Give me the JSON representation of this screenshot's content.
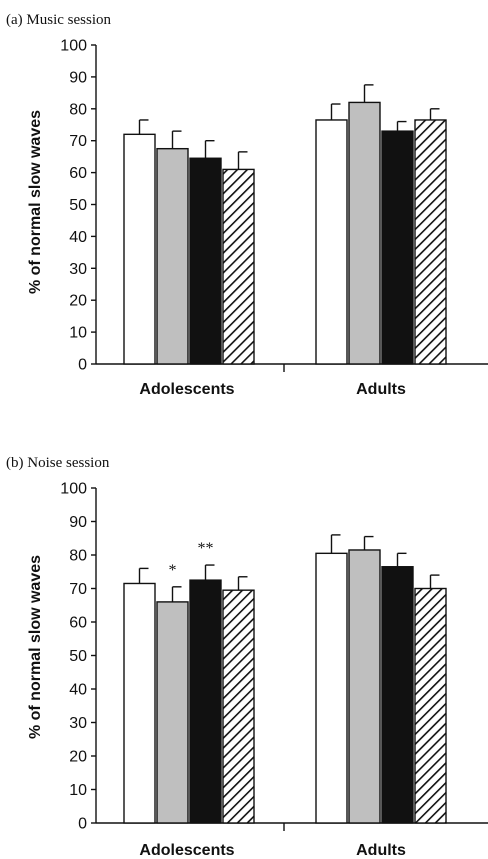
{
  "chart_data": [
    {
      "type": "bar",
      "title": "(a) Music session",
      "xlabel": "",
      "ylabel": "% of normal slow waves",
      "categories": [
        "Adolescents",
        "Adults"
      ],
      "ylim": [
        0,
        100
      ],
      "yticks": [
        0,
        10,
        20,
        30,
        40,
        50,
        60,
        70,
        80,
        90,
        100
      ],
      "grid": false,
      "series": [
        {
          "fill": "white",
          "values": [
            72,
            76.5
          ],
          "errors": [
            4.5,
            5
          ]
        },
        {
          "fill": "grey",
          "values": [
            67.5,
            82
          ],
          "errors": [
            5.5,
            5.5
          ]
        },
        {
          "fill": "black",
          "values": [
            64.5,
            73
          ],
          "errors": [
            5.5,
            3
          ]
        },
        {
          "fill": "hatched",
          "values": [
            61,
            76.5
          ],
          "errors": [
            5.5,
            3.5
          ]
        }
      ],
      "annotations": []
    },
    {
      "type": "bar",
      "title": "(b) Noise session",
      "xlabel": "",
      "ylabel": "% of normal slow waves",
      "categories": [
        "Adolescents",
        "Adults"
      ],
      "ylim": [
        0,
        100
      ],
      "yticks": [
        0,
        10,
        20,
        30,
        40,
        50,
        60,
        70,
        80,
        90,
        100
      ],
      "grid": false,
      "series": [
        {
          "fill": "white",
          "values": [
            71.5,
            80.5
          ],
          "errors": [
            4.5,
            5.5
          ]
        },
        {
          "fill": "grey",
          "values": [
            66,
            81.5
          ],
          "errors": [
            4.5,
            4
          ]
        },
        {
          "fill": "black",
          "values": [
            72.5,
            76.5
          ],
          "errors": [
            4.5,
            4
          ]
        },
        {
          "fill": "hatched",
          "values": [
            69.5,
            70
          ],
          "errors": [
            4,
            4
          ]
        }
      ],
      "annotations": [
        {
          "text": "*",
          "category": 0,
          "series": 1
        },
        {
          "text": "**",
          "category": 0,
          "series": 2
        }
      ]
    }
  ],
  "colors": {
    "white": "#ffffff",
    "grey": "#bfbfbf",
    "black": "#111111",
    "stroke": "#111111"
  }
}
